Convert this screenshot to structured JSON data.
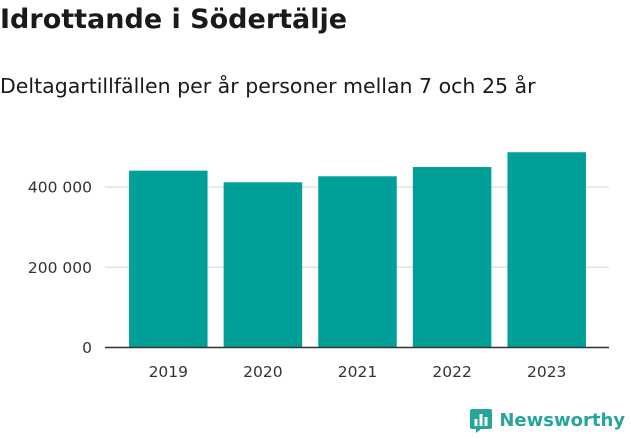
{
  "header": {
    "title": "Idrottande i Södertälje",
    "subtitle": "Deltagartillfällen per år personer mellan 7 och 25 år"
  },
  "brand": {
    "name": "Newsworthy",
    "icon": "bar-chart-logo-icon",
    "color": "#26a69a"
  },
  "chart_data": {
    "type": "bar",
    "categories": [
      "2019",
      "2020",
      "2021",
      "2022",
      "2023"
    ],
    "values": [
      441000,
      412000,
      427000,
      450000,
      487000
    ],
    "title": "",
    "xlabel": "",
    "ylabel": "",
    "ylim": [
      0,
      500000
    ],
    "yticks": [
      0,
      200000,
      400000
    ],
    "ytick_labels": [
      "0",
      "200 000",
      "400 000"
    ],
    "grid": "horizontal",
    "bar_color": "#00a099"
  }
}
